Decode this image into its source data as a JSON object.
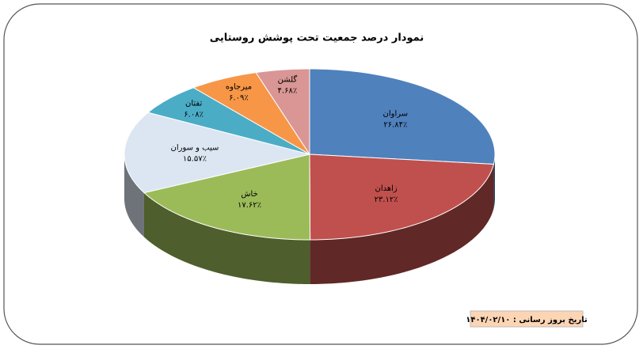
{
  "chart_data": {
    "type": "pie",
    "title": "نمودار درصد جمعیت تحت پوشش روستایی",
    "categories": [
      "سراوان",
      "زاهدان",
      "خاش",
      "سیب و سوران",
      "تفتان",
      "میرجاوه",
      "گلشن"
    ],
    "values": [
      26.84,
      23.12,
      17.62,
      15.57,
      6.08,
      6.09,
      4.68
    ],
    "value_labels": [
      "۲۶.۸۴٪",
      "۲۳.۱۲٪",
      "۱۷.۶۲٪",
      "۱۵.۵۷٪",
      "۶.۰۸٪",
      "۶.۰۹٪",
      "۴.۶۸٪"
    ],
    "colors": [
      "#4f81bd",
      "#c0504d",
      "#9bbb59",
      "#dce6f2",
      "#4bacc6",
      "#f79646",
      "#d99694"
    ]
  },
  "footer_note": "تاریخ بروز رسانی : ۱۴۰۴/۰۲/۱۰"
}
